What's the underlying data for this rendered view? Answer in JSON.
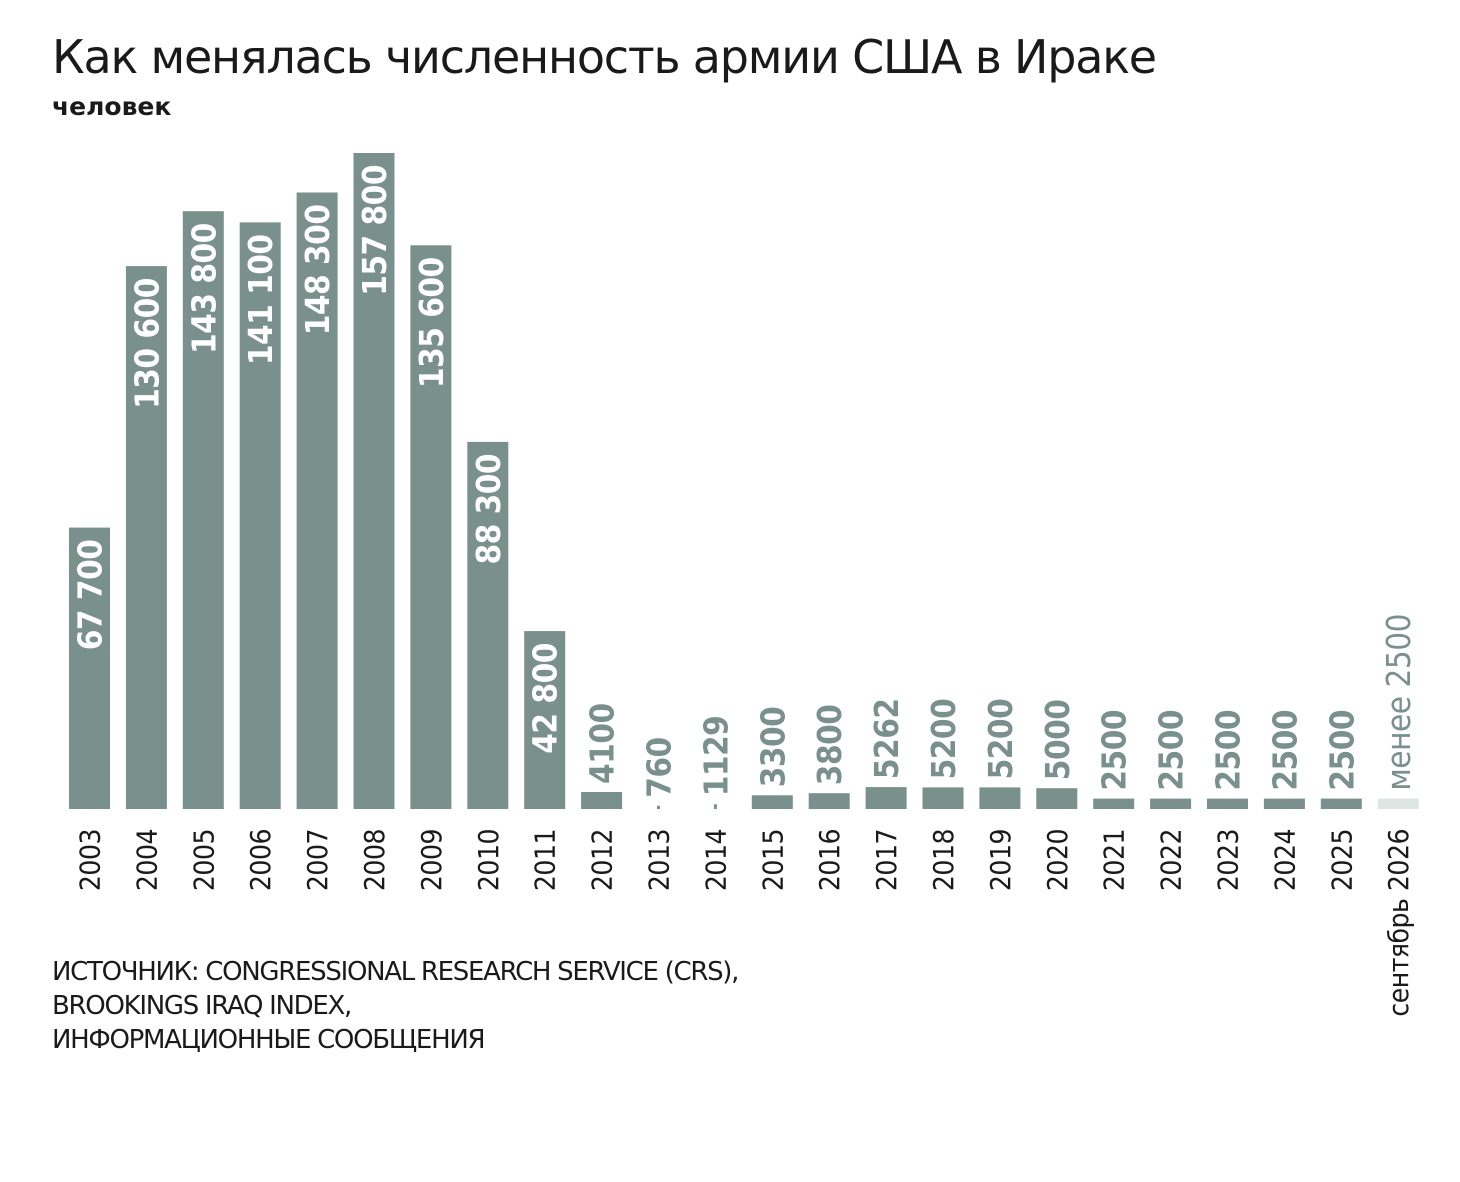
{
  "chart_data": {
    "type": "bar",
    "title": "Как менялась численность армии США в Ираке",
    "subtitle": "человек",
    "categories": [
      "2003",
      "2004",
      "2005",
      "2006",
      "2007",
      "2008",
      "2009",
      "2010",
      "2011",
      "2012",
      "2013",
      "2014",
      "2015",
      "2016",
      "2017",
      "2018",
      "2019",
      "2020",
      "2021",
      "2022",
      "2023",
      "2024",
      "2025",
      "сентябрь 2026"
    ],
    "values": [
      67700,
      130600,
      143800,
      141100,
      148300,
      157800,
      135600,
      88300,
      42800,
      4100,
      760,
      1129,
      3300,
      3800,
      5262,
      5200,
      5200,
      5000,
      2500,
      2500,
      2500,
      2500,
      2500,
      2500
    ],
    "value_labels": [
      "67 700",
      "130 600",
      "143 800",
      "141 100",
      "148 300",
      "157 800",
      "135 600",
      "88 300",
      "42 800",
      "4100",
      "760",
      "1129",
      "3300",
      "3800",
      "5262",
      "5200",
      "5200",
      "5000",
      "2500",
      "2500",
      "2500",
      "2500",
      "2500",
      "менее 2500"
    ],
    "ylim": [
      0,
      157800
    ],
    "grid": false,
    "bar_color": "#7a908c",
    "highlight_color": "#dde6e2",
    "label_color_inside": "#ffffff",
    "label_color_outside": "#7a908c",
    "highlight_index": 23
  },
  "source": {
    "lines": [
      "ИСТОЧНИК: CONGRESSIONAL RESEARCH SERVICE (CRS),",
      "BROOKINGS IRAQ INDEX,",
      "ИНФОРМАЦИОННЫЕ СООБЩЕНИЯ"
    ]
  }
}
